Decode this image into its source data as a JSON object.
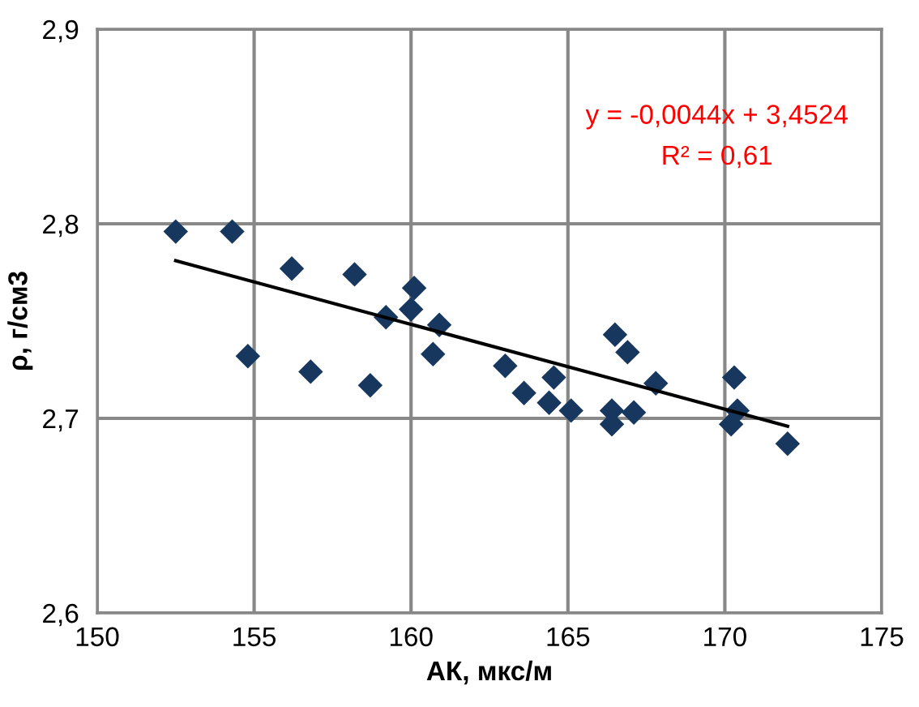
{
  "chart_data": {
    "type": "scatter",
    "xlabel": "АК, мкс/м",
    "ylabel": "ρ, г/см3",
    "xlim": [
      150,
      175
    ],
    "xticks": [
      150,
      155,
      160,
      165,
      170,
      175
    ],
    "ylim": [
      2.6,
      2.9
    ],
    "yticks": [
      {
        "value": 2.6,
        "label": "2,6"
      },
      {
        "value": 2.7,
        "label": "2,7"
      },
      {
        "value": 2.8,
        "label": "2,8"
      },
      {
        "value": 2.9,
        "label": "2,9"
      }
    ],
    "grid": true,
    "legend": false,
    "series": [
      {
        "marker": "diamond",
        "color": "#17375e",
        "x": [
          152.5,
          154.3,
          156.2,
          154.8,
          158.2,
          156.8,
          158.7,
          160.1,
          160.0,
          159.2,
          160.9,
          160.7,
          163.0,
          163.6,
          164.55,
          164.4,
          165.1,
          166.5,
          166.9,
          166.4,
          166.4,
          167.1,
          167.8,
          170.3,
          170.4,
          170.2,
          172.0
        ],
        "values": [
          2.796,
          2.796,
          2.777,
          2.732,
          2.774,
          2.724,
          2.717,
          2.767,
          2.756,
          2.752,
          2.748,
          2.733,
          2.727,
          2.713,
          2.721,
          2.708,
          2.704,
          2.743,
          2.734,
          2.704,
          2.697,
          2.703,
          2.718,
          2.721,
          2.704,
          2.697,
          2.687
        ]
      },
      {
        "type": "line",
        "color": "#000000",
        "line_style": "solid",
        "marker": "none",
        "x": [
          152.5,
          172.0
        ],
        "values": [
          2.781,
          2.696
        ]
      }
    ],
    "annotations": [
      "y = -0,0044x + 3,4524",
      "R² = 0,61"
    ]
  }
}
